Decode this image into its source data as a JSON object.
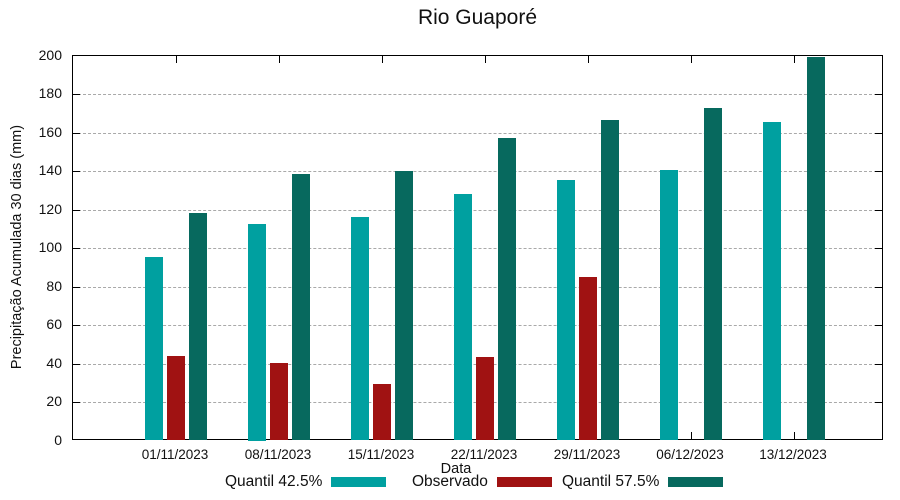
{
  "title": "Rio Guaporé",
  "chart_data": {
    "type": "bar",
    "title": "Rio Guaporé",
    "xlabel": "Data",
    "ylabel": "Precipitação Acumulada 30 dias (mm)",
    "ylim": [
      0,
      200
    ],
    "ytick_step": 20,
    "grid": "horizontal-dashed",
    "legend_position": "bottom",
    "categories": [
      "01/11/2023",
      "08/11/2023",
      "15/11/2023",
      "22/11/2023",
      "29/11/2023",
      "06/12/2023",
      "13/12/2023"
    ],
    "series": [
      {
        "name": "Quantil 42.5%",
        "color": "#00A0A0",
        "values": [
          95.5,
          112.5,
          116,
          128,
          135.5,
          140.5,
          165.5
        ]
      },
      {
        "name": "Observado",
        "color": "#A01212",
        "values": [
          44,
          40.5,
          29.5,
          43.5,
          85,
          null,
          null
        ]
      },
      {
        "name": "Quantil 57.5%",
        "color": "#07695E",
        "values": [
          118.5,
          138.5,
          140,
          157.5,
          166.5,
          173,
          199.5
        ]
      }
    ],
    "colors": {
      "grid": "#a9a9a9",
      "axis": "#000000",
      "text": "#111111"
    }
  }
}
